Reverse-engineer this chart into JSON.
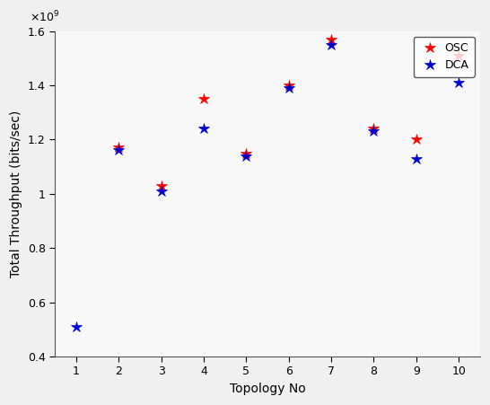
{
  "x": [
    1,
    2,
    3,
    4,
    5,
    6,
    7,
    8,
    9,
    10
  ],
  "osc_y": [
    null,
    1170000000.0,
    1030000000.0,
    1350000000.0,
    1150000000.0,
    1400000000.0,
    1570000000.0,
    1240000000.0,
    1200000000.0,
    1510000000.0
  ],
  "dca_y": [
    510000000.0,
    1160000000.0,
    1010000000.0,
    1240000000.0,
    1140000000.0,
    1390000000.0,
    1550000000.0,
    1230000000.0,
    1130000000.0,
    1410000000.0
  ],
  "xlabel": "Topology No",
  "ylabel": "Total Throughput (bits/sec)",
  "ylim": [
    400000000.0,
    1600000000.0
  ],
  "xlim": [
    0.5,
    10.5
  ],
  "yticks": [
    400000000.0,
    600000000.0,
    800000000.0,
    1000000000.0,
    1200000000.0,
    1400000000.0,
    1600000000.0
  ],
  "ytick_labels": [
    "0.4",
    "0.6",
    "0.8",
    "1",
    "1.2",
    "1.4",
    "1.6"
  ],
  "xticks": [
    1,
    2,
    3,
    4,
    5,
    6,
    7,
    8,
    9,
    10
  ],
  "legend_osc": "OSC",
  "legend_dca": "DCA",
  "marker_size": 9,
  "osc_color": "#ff0000",
  "dca_color": "#0000cc",
  "bg_color": "#f0f0f0",
  "axes_bg_color": "#f8f8f8"
}
